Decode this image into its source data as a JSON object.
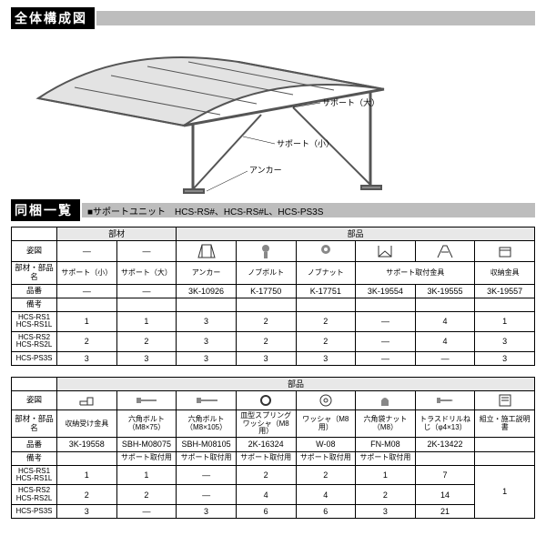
{
  "headers": {
    "overall": "全体構成図",
    "included": "同梱一覧",
    "unit": "■サポートユニット　HCS-RS#、HCS-RS#L、HCS-PS3S"
  },
  "diagram_labels": {
    "support_large": "サポート（大）",
    "support_small": "サポート（小）",
    "anchor": "アンカー"
  },
  "col_labels": {
    "sugata": "姿図",
    "name": "部材・部品名",
    "code": "品番",
    "note": "備考",
    "member": "部材",
    "part": "部品"
  },
  "t1": {
    "names": [
      "サポート（小）",
      "サポート（大）",
      "アンカー",
      "ノブボルト",
      "ノブナット",
      "サポート取付金具",
      "",
      "収納金具"
    ],
    "codes": [
      "—",
      "—",
      "3K-10926",
      "K-17750",
      "K-17751",
      "3K-19554",
      "3K-19555",
      "3K-19557"
    ],
    "rows": [
      {
        "label": "HCS-RS1\nHCS-RS1L",
        "vals": [
          "1",
          "1",
          "3",
          "2",
          "2",
          "—",
          "4",
          "1"
        ]
      },
      {
        "label": "HCS-RS2\nHCS-RS2L",
        "vals": [
          "2",
          "2",
          "3",
          "2",
          "2",
          "—",
          "4",
          "3"
        ]
      },
      {
        "label": "HCS-PS3S",
        "vals": [
          "3",
          "3",
          "3",
          "3",
          "3",
          "—",
          "—",
          "3"
        ]
      }
    ]
  },
  "t2": {
    "names": [
      "収納受け金具",
      "六角ボルト（M8×75）",
      "六角ボルト（M8×105）",
      "皿型スプリングワッシャ（M8用）",
      "ワッシャ（M8用）",
      "六角袋ナット（M8）",
      "トラスドリルねじ（φ4×13）",
      "組立・施工説明書"
    ],
    "codes": [
      "3K-19558",
      "SBH-M08075",
      "SBH-M08105",
      "2K-16324",
      "W-08",
      "FN-M08",
      "2K-13422",
      ""
    ],
    "notes": [
      "",
      "サポート取付用",
      "サポート取付用",
      "サポート取付用",
      "サポート取付用",
      "サポート取付用",
      "",
      ""
    ],
    "rows": [
      {
        "label": "HCS-RS1\nHCS-RS1L",
        "vals": [
          "1",
          "1",
          "—",
          "2",
          "2",
          "1",
          "7",
          ""
        ]
      },
      {
        "label": "HCS-RS2\nHCS-RS2L",
        "vals": [
          "2",
          "2",
          "—",
          "4",
          "4",
          "2",
          "14",
          "1"
        ]
      },
      {
        "label": "HCS-PS3S",
        "vals": [
          "3",
          "—",
          "3",
          "6",
          "6",
          "3",
          "21",
          ""
        ]
      }
    ]
  }
}
